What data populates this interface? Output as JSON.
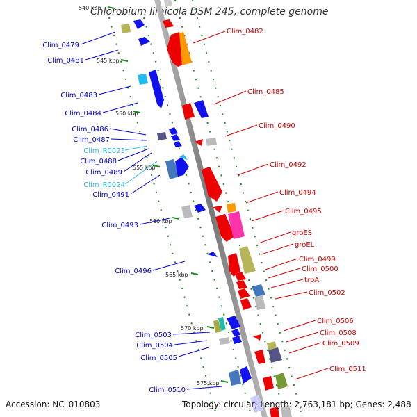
{
  "title": "Chlorobium limicola DSM 245, complete genome",
  "footer": {
    "accession": "Accession: NC_010803",
    "stats": "Topology: circular; Length: 2,763,181 bp; Genes: 2,488"
  },
  "colors": {
    "left_label": "#0000cc",
    "rna_label": "#33bbee",
    "right_label": "#cc0000",
    "tick": "#1a8a1a"
  },
  "kbp_marks": [
    "540 kbp",
    "545 kbp",
    "550 kbp",
    "555 kbp",
    "560 kbp",
    "565 kbp",
    "570 kbp",
    "575 kbp"
  ],
  "left_labels": [
    "Clim_0479",
    "Clim_0481",
    "Clim_0483",
    "Clim_0484",
    "Clim_0486",
    "Clim_0487",
    "Clim_R0023",
    "Clim_0488",
    "Clim_0489",
    "Clim_R0024",
    "Clim_0491",
    "Clim_0493",
    "Clim_0496",
    "Clim_0503",
    "Clim_0504",
    "Clim_0505",
    "Clim_0510"
  ],
  "right_labels": [
    "Clim_0482",
    "Clim_0485",
    "Clim_0490",
    "Clim_0492",
    "Clim_0494",
    "Clim_0495",
    "groES",
    "groEL",
    "Clim_0499",
    "Clim_0500",
    "trpA",
    "Clim_0502",
    "Clim_0506",
    "Clim_0508",
    "Clim_0509",
    "Clim_0511"
  ]
}
